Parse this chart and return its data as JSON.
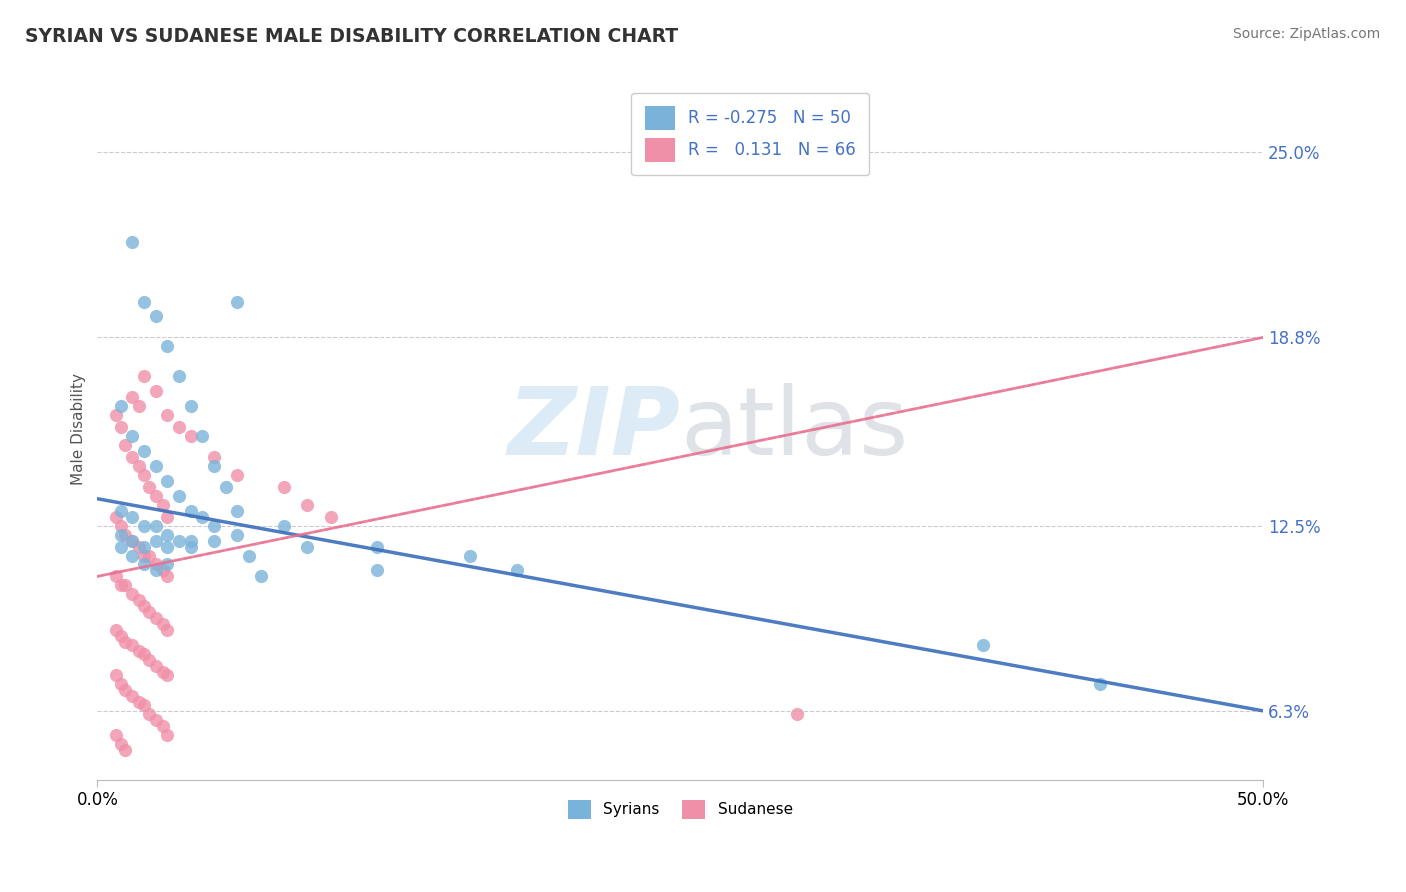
{
  "title": "SYRIAN VS SUDANESE MALE DISABILITY CORRELATION CHART",
  "source": "Source: ZipAtlas.com",
  "ylabel": "Male Disability",
  "yticks": [
    0.063,
    0.125,
    0.188,
    0.25
  ],
  "ytick_labels": [
    "6.3%",
    "12.5%",
    "18.8%",
    "25.0%"
  ],
  "xlim": [
    0.0,
    0.5
  ],
  "ylim": [
    0.04,
    0.275
  ],
  "syrian_color": "#7ab3d9",
  "sudanese_color": "#f08fa8",
  "syrian_line_color": "#3a6fba",
  "sudanese_line_color": "#e87090",
  "syrian_line": [
    0.134,
    0.063
  ],
  "sudanese_line": [
    0.108,
    0.188
  ],
  "syrian_scatter_x": [
    0.015,
    0.02,
    0.025,
    0.03,
    0.035,
    0.04,
    0.045,
    0.05,
    0.055,
    0.06,
    0.01,
    0.015,
    0.02,
    0.025,
    0.03,
    0.035,
    0.04,
    0.045,
    0.05,
    0.06,
    0.01,
    0.015,
    0.02,
    0.025,
    0.03,
    0.035,
    0.04,
    0.05,
    0.065,
    0.08,
    0.01,
    0.015,
    0.02,
    0.025,
    0.03,
    0.04,
    0.06,
    0.09,
    0.12,
    0.16,
    0.01,
    0.015,
    0.02,
    0.025,
    0.03,
    0.07,
    0.12,
    0.18,
    0.38,
    0.43
  ],
  "syrian_scatter_y": [
    0.22,
    0.2,
    0.195,
    0.185,
    0.175,
    0.165,
    0.155,
    0.145,
    0.138,
    0.2,
    0.165,
    0.155,
    0.15,
    0.145,
    0.14,
    0.135,
    0.13,
    0.128,
    0.125,
    0.13,
    0.13,
    0.128,
    0.125,
    0.125,
    0.122,
    0.12,
    0.118,
    0.12,
    0.115,
    0.125,
    0.122,
    0.12,
    0.118,
    0.12,
    0.118,
    0.12,
    0.122,
    0.118,
    0.118,
    0.115,
    0.118,
    0.115,
    0.112,
    0.11,
    0.112,
    0.108,
    0.11,
    0.11,
    0.085,
    0.072
  ],
  "sudanese_scatter_x": [
    0.008,
    0.01,
    0.012,
    0.015,
    0.018,
    0.02,
    0.022,
    0.025,
    0.028,
    0.03,
    0.008,
    0.01,
    0.012,
    0.015,
    0.018,
    0.02,
    0.022,
    0.025,
    0.028,
    0.03,
    0.008,
    0.01,
    0.012,
    0.015,
    0.018,
    0.02,
    0.022,
    0.025,
    0.028,
    0.03,
    0.008,
    0.01,
    0.012,
    0.015,
    0.018,
    0.02,
    0.022,
    0.025,
    0.028,
    0.03,
    0.008,
    0.01,
    0.012,
    0.015,
    0.018,
    0.02,
    0.022,
    0.025,
    0.028,
    0.03,
    0.008,
    0.01,
    0.012,
    0.015,
    0.018,
    0.02,
    0.025,
    0.03,
    0.035,
    0.04,
    0.05,
    0.06,
    0.08,
    0.09,
    0.1,
    0.3
  ],
  "sudanese_scatter_y": [
    0.162,
    0.158,
    0.152,
    0.148,
    0.145,
    0.142,
    0.138,
    0.135,
    0.132,
    0.128,
    0.128,
    0.125,
    0.122,
    0.12,
    0.118,
    0.115,
    0.115,
    0.112,
    0.11,
    0.108,
    0.108,
    0.105,
    0.105,
    0.102,
    0.1,
    0.098,
    0.096,
    0.094,
    0.092,
    0.09,
    0.09,
    0.088,
    0.086,
    0.085,
    0.083,
    0.082,
    0.08,
    0.078,
    0.076,
    0.075,
    0.075,
    0.072,
    0.07,
    0.068,
    0.066,
    0.065,
    0.062,
    0.06,
    0.058,
    0.055,
    0.055,
    0.052,
    0.05,
    0.168,
    0.165,
    0.175,
    0.17,
    0.162,
    0.158,
    0.155,
    0.148,
    0.142,
    0.138,
    0.132,
    0.128,
    0.062
  ]
}
